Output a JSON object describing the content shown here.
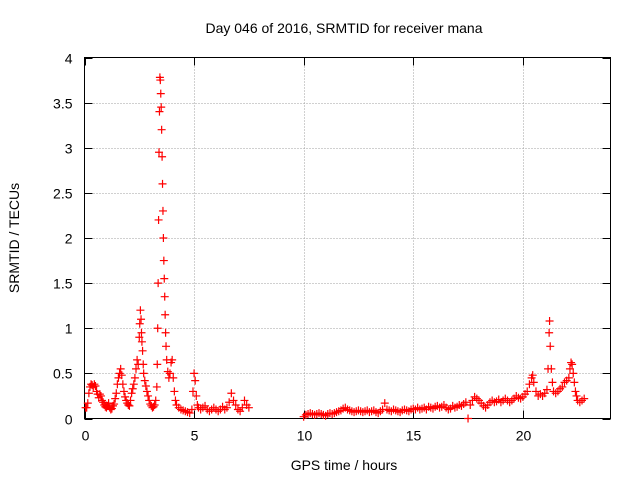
{
  "chart_data": {
    "type": "scatter",
    "title": "Day 046 of 2016, SRMTID for receiver mana",
    "xlabel": "GPS time / hours",
    "ylabel": "SRMTID / TECUs",
    "xlim": [
      0,
      24
    ],
    "ylim": [
      0,
      4
    ],
    "xticks": [
      0,
      5,
      10,
      15,
      20
    ],
    "yticks": [
      0,
      0.5,
      1,
      1.5,
      2,
      2.5,
      3,
      3.5,
      4
    ],
    "xtick_labels": [
      "0",
      "5",
      "10",
      "15",
      "20"
    ],
    "ytick_labels": [
      "0",
      "0.5",
      "1",
      "1.5",
      "2",
      "2.5",
      "3",
      "3.5",
      "4"
    ],
    "grid": true,
    "marker": "plus",
    "color": "#ff0000",
    "series": [
      {
        "points": [
          [
            0.05,
            0.12
          ],
          [
            0.1,
            0.12
          ],
          [
            0.15,
            0.17
          ],
          [
            0.2,
            0.28
          ],
          [
            0.25,
            0.35
          ],
          [
            0.3,
            0.38
          ],
          [
            0.35,
            0.37
          ],
          [
            0.4,
            0.35
          ],
          [
            0.45,
            0.38
          ],
          [
            0.5,
            0.36
          ],
          [
            0.55,
            0.3
          ],
          [
            0.6,
            0.27
          ],
          [
            0.65,
            0.23
          ],
          [
            0.7,
            0.27
          ],
          [
            0.75,
            0.25
          ],
          [
            0.8,
            0.2
          ],
          [
            0.85,
            0.18
          ],
          [
            0.9,
            0.15
          ],
          [
            0.95,
            0.13
          ],
          [
            1.0,
            0.12
          ],
          [
            1.05,
            0.14
          ],
          [
            1.1,
            0.17
          ],
          [
            1.15,
            0.12
          ],
          [
            1.2,
            0.1
          ],
          [
            1.25,
            0.11
          ],
          [
            1.3,
            0.14
          ],
          [
            1.35,
            0.16
          ],
          [
            1.4,
            0.22
          ],
          [
            1.45,
            0.28
          ],
          [
            1.5,
            0.38
          ],
          [
            1.55,
            0.45
          ],
          [
            1.6,
            0.5
          ],
          [
            1.65,
            0.55
          ],
          [
            1.7,
            0.48
          ],
          [
            1.75,
            0.38
          ],
          [
            1.8,
            0.3
          ],
          [
            1.85,
            0.24
          ],
          [
            1.9,
            0.2
          ],
          [
            1.95,
            0.17
          ],
          [
            2.0,
            0.15
          ],
          [
            2.05,
            0.14
          ],
          [
            2.1,
            0.2
          ],
          [
            2.15,
            0.28
          ],
          [
            2.2,
            0.33
          ],
          [
            2.25,
            0.38
          ],
          [
            2.3,
            0.45
          ],
          [
            2.35,
            0.55
          ],
          [
            2.4,
            0.65
          ],
          [
            2.45,
            0.6
          ],
          [
            2.5,
            0.9
          ],
          [
            2.52,
            1.05
          ],
          [
            2.55,
            1.2
          ],
          [
            2.58,
            1.1
          ],
          [
            2.6,
            0.95
          ],
          [
            2.62,
            0.85
          ],
          [
            2.65,
            0.75
          ],
          [
            2.68,
            0.6
          ],
          [
            2.7,
            0.5
          ],
          [
            2.75,
            0.42
          ],
          [
            2.8,
            0.36
          ],
          [
            2.85,
            0.3
          ],
          [
            2.9,
            0.25
          ],
          [
            2.95,
            0.2
          ],
          [
            3.0,
            0.16
          ],
          [
            3.05,
            0.14
          ],
          [
            3.1,
            0.12
          ],
          [
            3.15,
            0.13
          ],
          [
            3.2,
            0.15
          ],
          [
            3.25,
            0.2
          ],
          [
            3.3,
            0.35
          ],
          [
            3.32,
            0.6
          ],
          [
            3.34,
            1.0
          ],
          [
            3.36,
            1.5
          ],
          [
            3.38,
            2.2
          ],
          [
            3.4,
            2.95
          ],
          [
            3.42,
            3.4
          ],
          [
            3.44,
            3.78
          ],
          [
            3.46,
            3.75
          ],
          [
            3.48,
            3.6
          ],
          [
            3.5,
            3.45
          ],
          [
            3.52,
            3.2
          ],
          [
            3.54,
            2.9
          ],
          [
            3.56,
            2.6
          ],
          [
            3.58,
            2.3
          ],
          [
            3.6,
            2.0
          ],
          [
            3.62,
            1.75
          ],
          [
            3.64,
            1.55
          ],
          [
            3.66,
            1.35
          ],
          [
            3.68,
            1.15
          ],
          [
            3.7,
            0.95
          ],
          [
            3.72,
            0.8
          ],
          [
            3.75,
            0.65
          ],
          [
            3.8,
            0.52
          ],
          [
            3.85,
            0.45
          ],
          [
            3.9,
            0.5
          ],
          [
            3.95,
            0.62
          ],
          [
            4.0,
            0.65
          ],
          [
            4.05,
            0.45
          ],
          [
            4.1,
            0.3
          ],
          [
            4.15,
            0.2
          ],
          [
            4.2,
            0.15
          ],
          [
            4.3,
            0.12
          ],
          [
            4.4,
            0.1
          ],
          [
            4.5,
            0.09
          ],
          [
            4.6,
            0.08
          ],
          [
            4.7,
            0.07
          ],
          [
            4.8,
            0.06
          ],
          [
            4.9,
            0.1
          ],
          [
            4.95,
            0.3
          ],
          [
            5.0,
            0.5
          ],
          [
            5.05,
            0.42
          ],
          [
            5.1,
            0.25
          ],
          [
            5.15,
            0.15
          ],
          [
            5.2,
            0.12
          ],
          [
            5.3,
            0.1
          ],
          [
            5.4,
            0.12
          ],
          [
            5.5,
            0.14
          ],
          [
            5.6,
            0.1
          ],
          [
            5.7,
            0.08
          ],
          [
            5.8,
            0.1
          ],
          [
            5.9,
            0.12
          ],
          [
            6.0,
            0.1
          ],
          [
            6.1,
            0.08
          ],
          [
            6.2,
            0.1
          ],
          [
            6.3,
            0.13
          ],
          [
            6.4,
            0.1
          ],
          [
            6.5,
            0.12
          ],
          [
            6.6,
            0.18
          ],
          [
            6.7,
            0.28
          ],
          [
            6.8,
            0.2
          ],
          [
            6.9,
            0.15
          ],
          [
            7.0,
            0.1
          ],
          [
            7.1,
            0.08
          ],
          [
            7.2,
            0.12
          ],
          [
            7.3,
            0.2
          ],
          [
            7.4,
            0.15
          ],
          [
            7.5,
            0.12
          ],
          [
            10.0,
            0.02
          ],
          [
            10.1,
            0.04
          ],
          [
            10.2,
            0.05
          ],
          [
            10.3,
            0.06
          ],
          [
            10.4,
            0.05
          ],
          [
            10.5,
            0.04
          ],
          [
            10.6,
            0.05
          ],
          [
            10.7,
            0.06
          ],
          [
            10.8,
            0.05
          ],
          [
            10.9,
            0.04
          ],
          [
            11.0,
            0.03
          ],
          [
            11.1,
            0.05
          ],
          [
            11.2,
            0.06
          ],
          [
            11.3,
            0.05
          ],
          [
            11.4,
            0.06
          ],
          [
            11.5,
            0.07
          ],
          [
            11.6,
            0.08
          ],
          [
            11.7,
            0.09
          ],
          [
            11.8,
            0.11
          ],
          [
            11.9,
            0.12
          ],
          [
            12.0,
            0.1
          ],
          [
            12.1,
            0.09
          ],
          [
            12.2,
            0.08
          ],
          [
            12.3,
            0.07
          ],
          [
            12.4,
            0.08
          ],
          [
            12.5,
            0.09
          ],
          [
            12.6,
            0.08
          ],
          [
            12.7,
            0.07
          ],
          [
            12.8,
            0.08
          ],
          [
            12.9,
            0.09
          ],
          [
            13.0,
            0.07
          ],
          [
            13.1,
            0.08
          ],
          [
            13.2,
            0.09
          ],
          [
            13.3,
            0.07
          ],
          [
            13.4,
            0.06
          ],
          [
            13.5,
            0.08
          ],
          [
            13.6,
            0.1
          ],
          [
            13.7,
            0.17
          ],
          [
            13.8,
            0.1
          ],
          [
            13.9,
            0.09
          ],
          [
            14.0,
            0.08
          ],
          [
            14.1,
            0.1
          ],
          [
            14.2,
            0.09
          ],
          [
            14.3,
            0.08
          ],
          [
            14.4,
            0.07
          ],
          [
            14.5,
            0.09
          ],
          [
            14.6,
            0.1
          ],
          [
            14.7,
            0.09
          ],
          [
            14.8,
            0.08
          ],
          [
            14.9,
            0.1
          ],
          [
            15.0,
            0.11
          ],
          [
            15.1,
            0.1
          ],
          [
            15.2,
            0.12
          ],
          [
            15.3,
            0.1
          ],
          [
            15.4,
            0.11
          ],
          [
            15.5,
            0.12
          ],
          [
            15.6,
            0.1
          ],
          [
            15.7,
            0.13
          ],
          [
            15.8,
            0.12
          ],
          [
            15.9,
            0.11
          ],
          [
            16.0,
            0.13
          ],
          [
            16.1,
            0.14
          ],
          [
            16.2,
            0.12
          ],
          [
            16.3,
            0.13
          ],
          [
            16.4,
            0.15
          ],
          [
            16.5,
            0.12
          ],
          [
            16.6,
            0.1
          ],
          [
            16.7,
            0.11
          ],
          [
            16.8,
            0.14
          ],
          [
            16.9,
            0.12
          ],
          [
            17.0,
            0.13
          ],
          [
            17.1,
            0.15
          ],
          [
            17.2,
            0.14
          ],
          [
            17.3,
            0.16
          ],
          [
            17.4,
            0.18
          ],
          [
            17.5,
            0.0
          ],
          [
            17.6,
            0.15
          ],
          [
            17.7,
            0.2
          ],
          [
            17.8,
            0.24
          ],
          [
            17.9,
            0.22
          ],
          [
            18.0,
            0.2
          ],
          [
            18.1,
            0.17
          ],
          [
            18.2,
            0.14
          ],
          [
            18.3,
            0.12
          ],
          [
            18.4,
            0.15
          ],
          [
            18.5,
            0.18
          ],
          [
            18.6,
            0.2
          ],
          [
            18.7,
            0.18
          ],
          [
            18.8,
            0.19
          ],
          [
            18.9,
            0.21
          ],
          [
            19.0,
            0.18
          ],
          [
            19.1,
            0.2
          ],
          [
            19.2,
            0.22
          ],
          [
            19.3,
            0.2
          ],
          [
            19.4,
            0.18
          ],
          [
            19.5,
            0.2
          ],
          [
            19.6,
            0.22
          ],
          [
            19.7,
            0.25
          ],
          [
            19.8,
            0.23
          ],
          [
            19.9,
            0.22
          ],
          [
            20.0,
            0.24
          ],
          [
            20.1,
            0.27
          ],
          [
            20.2,
            0.3
          ],
          [
            20.3,
            0.38
          ],
          [
            20.4,
            0.45
          ],
          [
            20.45,
            0.48
          ],
          [
            20.5,
            0.4
          ],
          [
            20.6,
            0.3
          ],
          [
            20.7,
            0.25
          ],
          [
            20.8,
            0.27
          ],
          [
            20.9,
            0.25
          ],
          [
            21.0,
            0.28
          ],
          [
            21.1,
            0.32
          ],
          [
            21.15,
            0.55
          ],
          [
            21.2,
            0.95
          ],
          [
            21.22,
            1.08
          ],
          [
            21.25,
            0.8
          ],
          [
            21.3,
            0.55
          ],
          [
            21.35,
            0.4
          ],
          [
            21.4,
            0.3
          ],
          [
            21.5,
            0.28
          ],
          [
            21.6,
            0.3
          ],
          [
            21.7,
            0.33
          ],
          [
            21.8,
            0.35
          ],
          [
            21.9,
            0.4
          ],
          [
            22.0,
            0.42
          ],
          [
            22.1,
            0.45
          ],
          [
            22.15,
            0.55
          ],
          [
            22.2,
            0.62
          ],
          [
            22.25,
            0.6
          ],
          [
            22.3,
            0.5
          ],
          [
            22.35,
            0.4
          ],
          [
            22.4,
            0.3
          ],
          [
            22.45,
            0.25
          ],
          [
            22.5,
            0.2
          ],
          [
            22.6,
            0.18
          ],
          [
            22.7,
            0.2
          ],
          [
            22.8,
            0.22
          ]
        ]
      }
    ]
  }
}
